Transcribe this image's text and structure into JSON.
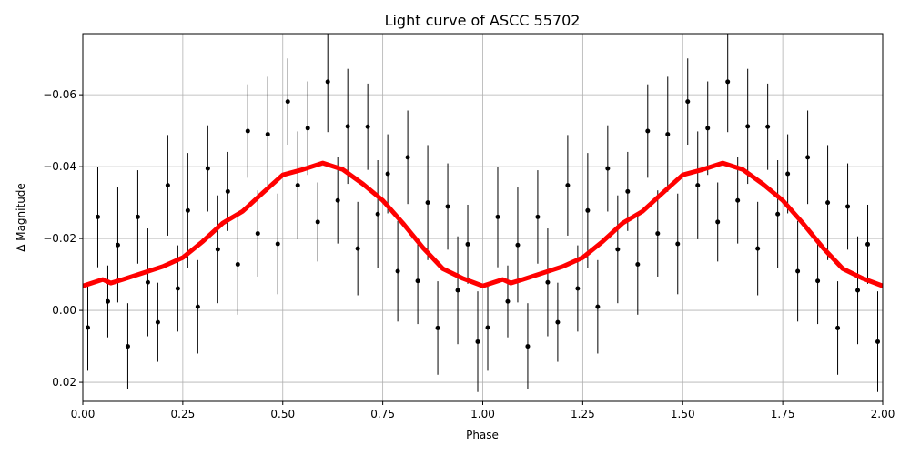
{
  "chart_data": {
    "type": "scatter",
    "title": "Light curve of ASCC 55702",
    "xlabel": "Phase",
    "ylabel": "Δ Magnitude",
    "xlim": [
      0,
      2
    ],
    "ylim": [
      -0.077,
      0.0253
    ],
    "y_inverted": true,
    "grid": true,
    "xticks": [
      {
        "value": 0,
        "label": "0.00"
      },
      {
        "value": 0.25,
        "label": "0.25"
      },
      {
        "value": 0.5,
        "label": "0.50"
      },
      {
        "value": 0.75,
        "label": "0.75"
      },
      {
        "value": 1,
        "label": "1.00"
      },
      {
        "value": 1.25,
        "label": "1.25"
      },
      {
        "value": 1.5,
        "label": "1.50"
      },
      {
        "value": 1.75,
        "label": "1.75"
      },
      {
        "value": 2,
        "label": "2.00"
      }
    ],
    "yticks": [
      {
        "value": -0.06,
        "label": "−0.06"
      },
      {
        "value": -0.04,
        "label": "−0.04"
      },
      {
        "value": -0.02,
        "label": "−0.02"
      },
      {
        "value": 0,
        "label": "0.00"
      },
      {
        "value": 0.02,
        "label": "0.02"
      }
    ],
    "series": [
      {
        "kind": "errorbar",
        "color": "#000000",
        "x": [
          0.0125,
          0.0375,
          0.0625,
          0.0875,
          0.1125,
          0.1375,
          0.1625,
          0.1875,
          0.2125,
          0.2375,
          0.2625,
          0.2875,
          0.3125,
          0.3375,
          0.3625,
          0.3875,
          0.4125,
          0.4375,
          0.4625,
          0.4875,
          0.5125,
          0.5375,
          0.5625,
          0.5875,
          0.6125,
          0.6375,
          0.6625,
          0.6875,
          0.7125,
          0.7375,
          0.7625,
          0.7875,
          0.8125,
          0.8375,
          0.8625,
          0.8875,
          0.9125,
          0.9375,
          0.9625,
          0.9875,
          1.0125,
          1.0375,
          1.0625,
          1.0875,
          1.1125,
          1.1375,
          1.1625,
          1.1875,
          1.2125,
          1.2375,
          1.2625,
          1.2875,
          1.3125,
          1.3375,
          1.3625,
          1.3875,
          1.4125,
          1.4375,
          1.4625,
          1.4875,
          1.5125,
          1.5375,
          1.5625,
          1.5875,
          1.6125,
          1.6375,
          1.6625,
          1.6875,
          1.7125,
          1.7375,
          1.7625,
          1.7875,
          1.8125,
          1.8375,
          1.8625,
          1.8875,
          1.9125,
          1.9375,
          1.9625,
          1.9875
        ],
        "values": [
          0.0048,
          -0.026,
          -0.0025,
          -0.0182,
          0.01,
          -0.026,
          -0.0078,
          0.0033,
          -0.0348,
          -0.0061,
          -0.0278,
          -0.001,
          -0.0395,
          -0.017,
          -0.0331,
          -0.0128,
          -0.0499,
          -0.0214,
          -0.049,
          -0.0185,
          -0.0581,
          -0.0348,
          -0.0507,
          -0.0246,
          -0.0636,
          -0.0306,
          -0.0512,
          -0.0172,
          -0.0511,
          -0.0268,
          -0.038,
          -0.0109,
          -0.0426,
          -0.0082,
          -0.03,
          0.0049,
          -0.0289,
          -0.0056,
          -0.0184,
          0.0087,
          0.0048,
          -0.026,
          -0.0025,
          -0.0182,
          0.01,
          -0.026,
          -0.0078,
          0.0033,
          -0.0348,
          -0.0061,
          -0.0278,
          -0.001,
          -0.0395,
          -0.017,
          -0.0331,
          -0.0128,
          -0.0499,
          -0.0214,
          -0.049,
          -0.0185,
          -0.0581,
          -0.0348,
          -0.0507,
          -0.0246,
          -0.0636,
          -0.0306,
          -0.0512,
          -0.0172,
          -0.0511,
          -0.0268,
          -0.038,
          -0.0109,
          -0.0426,
          -0.0082,
          -0.03,
          0.0049,
          -0.0289,
          -0.0056,
          -0.0184,
          0.0087
        ],
        "errors": [
          0.012,
          0.014,
          0.01,
          0.016,
          0.012,
          0.013,
          0.015,
          0.011,
          0.014,
          0.012,
          0.016,
          0.013,
          0.012,
          0.015,
          0.011,
          0.014,
          0.013,
          0.012,
          0.016,
          0.014,
          0.012,
          0.015,
          0.013,
          0.011,
          0.014,
          0.012,
          0.016,
          0.013,
          0.012,
          0.015,
          0.011,
          0.014,
          0.013,
          0.012,
          0.016,
          0.013,
          0.012,
          0.015,
          0.011,
          0.014,
          0.012,
          0.014,
          0.01,
          0.016,
          0.012,
          0.013,
          0.015,
          0.011,
          0.014,
          0.012,
          0.016,
          0.013,
          0.012,
          0.015,
          0.011,
          0.014,
          0.013,
          0.012,
          0.016,
          0.014,
          0.012,
          0.015,
          0.013,
          0.011,
          0.014,
          0.012,
          0.016,
          0.013,
          0.012,
          0.015,
          0.011,
          0.014,
          0.013,
          0.012,
          0.016,
          0.013,
          0.012,
          0.015,
          0.011,
          0.014
        ]
      },
      {
        "kind": "line",
        "color": "#ff0000",
        "x": [
          0,
          0.05,
          0.07,
          0.1,
          0.15,
          0.2,
          0.25,
          0.3,
          0.35,
          0.4,
          0.45,
          0.5,
          0.55,
          0.6,
          0.65,
          0.7,
          0.75,
          0.8,
          0.85,
          0.9,
          0.95,
          1,
          1.05,
          1.07,
          1.1,
          1.15,
          1.2,
          1.25,
          1.3,
          1.35,
          1.4,
          1.45,
          1.5,
          1.55,
          1.6,
          1.65,
          1.7,
          1.75,
          1.8,
          1.85,
          1.9,
          1.95,
          2
        ],
        "values": [
          -0.0068,
          -0.0086,
          -0.0076,
          -0.0086,
          -0.0104,
          -0.0122,
          -0.0147,
          -0.0192,
          -0.0243,
          -0.0276,
          -0.0327,
          -0.0377,
          -0.0392,
          -0.041,
          -0.0392,
          -0.0352,
          -0.0306,
          -0.0243,
          -0.0175,
          -0.0116,
          -0.0089,
          -0.0068,
          -0.0086,
          -0.0076,
          -0.0086,
          -0.0104,
          -0.0122,
          -0.0147,
          -0.0192,
          -0.0243,
          -0.0276,
          -0.0327,
          -0.0377,
          -0.0392,
          -0.041,
          -0.0392,
          -0.0352,
          -0.0306,
          -0.0243,
          -0.0175,
          -0.0116,
          -0.0089,
          -0.0068
        ]
      }
    ]
  }
}
